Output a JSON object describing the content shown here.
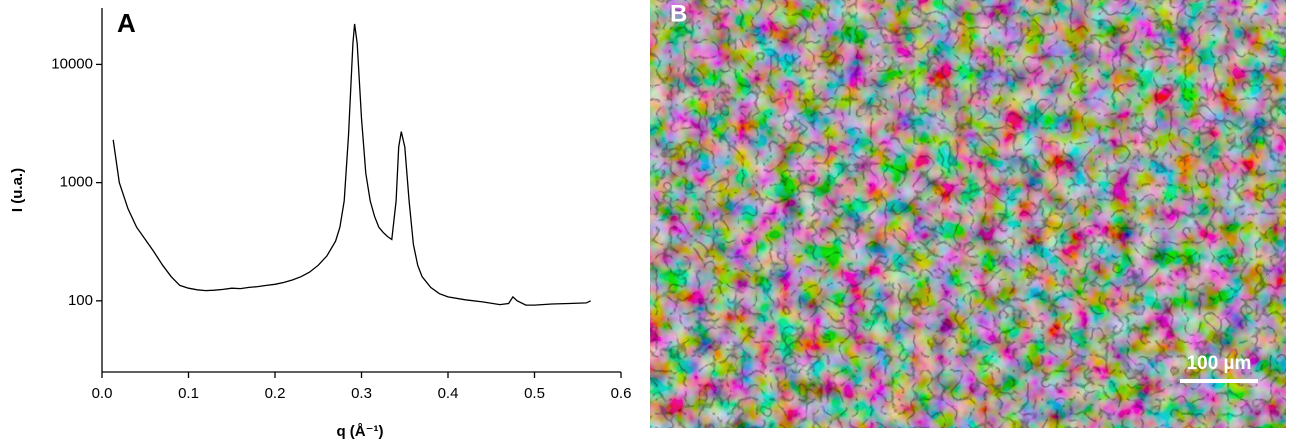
{
  "chart_data": {
    "type": "line",
    "title": "A",
    "xlabel": "q (Å⁻¹)",
    "ylabel": "I (u.a.)",
    "x": [
      0.013,
      0.02,
      0.03,
      0.04,
      0.05,
      0.06,
      0.07,
      0.08,
      0.09,
      0.1,
      0.11,
      0.12,
      0.13,
      0.14,
      0.15,
      0.16,
      0.17,
      0.18,
      0.19,
      0.2,
      0.21,
      0.22,
      0.23,
      0.24,
      0.25,
      0.26,
      0.27,
      0.275,
      0.28,
      0.285,
      0.29,
      0.292,
      0.295,
      0.3,
      0.305,
      0.31,
      0.315,
      0.32,
      0.325,
      0.33,
      0.335,
      0.34,
      0.343,
      0.346,
      0.35,
      0.355,
      0.36,
      0.365,
      0.37,
      0.38,
      0.39,
      0.4,
      0.42,
      0.44,
      0.46,
      0.47,
      0.475,
      0.48,
      0.49,
      0.5,
      0.52,
      0.54,
      0.56,
      0.565
    ],
    "series": [
      {
        "color": "#000000",
        "values": [
          2300,
          1000,
          600,
          420,
          330,
          260,
          200,
          160,
          135,
          128,
          124,
          122,
          123,
          125,
          128,
          127,
          130,
          132,
          135,
          138,
          143,
          150,
          160,
          175,
          200,
          240,
          320,
          420,
          700,
          2500,
          15000,
          22000,
          15000,
          3500,
          1200,
          700,
          520,
          420,
          380,
          350,
          330,
          700,
          2000,
          2700,
          2000,
          700,
          300,
          200,
          160,
          130,
          115,
          108,
          102,
          98,
          93,
          95,
          108,
          100,
          92,
          92,
          94,
          95,
          96,
          100
        ]
      }
    ],
    "xlim": [
      0,
      0.6
    ],
    "xticks": [
      {
        "value": 0,
        "label": "0.0"
      },
      0.1,
      0.2,
      0.3,
      0.4,
      0.5,
      0.6
    ],
    "ylim": [
      25,
      30000
    ],
    "yticks": [
      100,
      1000,
      10000
    ],
    "log_y": true
  },
  "image_panel": {
    "label": "B",
    "scale_bar": "100 µm"
  }
}
